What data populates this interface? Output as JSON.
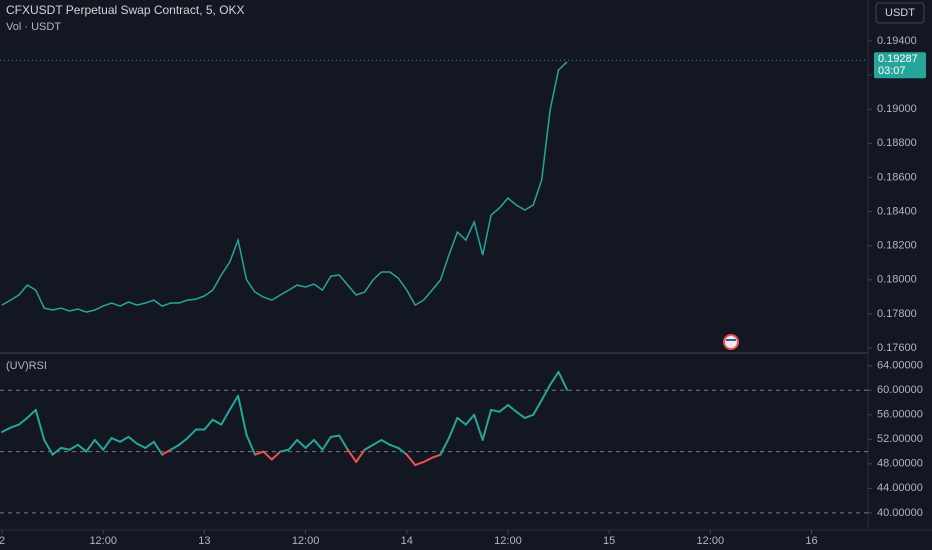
{
  "chart_data": [
    {
      "type": "line",
      "title": "CFXUSDT Perpetual Swap Contract, 5, OKX",
      "subtitle": "Vol · USDT",
      "currency": "USDT",
      "x": [
        0,
        1,
        2,
        3,
        4,
        5,
        6,
        7,
        8,
        9,
        10,
        11,
        12,
        13,
        14,
        15,
        16,
        17,
        18,
        19,
        20,
        21,
        22,
        23,
        24,
        25,
        26,
        27,
        28,
        29,
        30,
        31,
        32,
        33,
        34,
        35,
        36,
        37,
        38,
        39,
        40,
        41,
        42,
        43,
        44,
        45,
        46,
        47,
        48,
        49,
        50,
        51,
        52,
        53,
        54,
        55,
        56,
        57,
        58,
        59,
        60,
        61,
        62,
        63,
        64,
        65,
        66,
        67
      ],
      "values": [
        0.17852,
        0.17881,
        0.17911,
        0.17969,
        0.1794,
        0.17834,
        0.17823,
        0.17834,
        0.17817,
        0.17829,
        0.17811,
        0.17823,
        0.17846,
        0.17864,
        0.17846,
        0.1787,
        0.17852,
        0.17864,
        0.17881,
        0.17846,
        0.17864,
        0.17864,
        0.17881,
        0.17887,
        0.17905,
        0.1794,
        0.18028,
        0.18104,
        0.18233,
        0.17999,
        0.17928,
        0.17899,
        0.17881,
        0.17911,
        0.1794,
        0.17969,
        0.17958,
        0.17975,
        0.1794,
        0.18022,
        0.18028,
        0.17969,
        0.17911,
        0.17928,
        0.17999,
        0.18046,
        0.18046,
        0.1801,
        0.1794,
        0.17852,
        0.17881,
        0.1794,
        0.17999,
        0.18145,
        0.1828,
        0.18233,
        0.18339,
        0.18145,
        0.1838,
        0.18421,
        0.18479,
        0.18438,
        0.18409,
        0.18438,
        0.18585,
        0.18995,
        0.1923,
        0.19277
      ],
      "color": "#26a69a",
      "xlim": [
        -0.24,
        102.7
      ],
      "ylim": [
        0.17577,
        0.1964
      ],
      "yticks": [
        {
          "value": 0.176,
          "label": "0.17600"
        },
        {
          "value": 0.178,
          "label": "0.17800"
        },
        {
          "value": 0.18,
          "label": "0.18000"
        },
        {
          "value": 0.182,
          "label": "0.18200"
        },
        {
          "value": 0.184,
          "label": "0.18400"
        },
        {
          "value": 0.186,
          "label": "0.18600"
        },
        {
          "value": 0.188,
          "label": "0.18800"
        },
        {
          "value": 0.19,
          "label": "0.19000"
        },
        {
          "value": 0.192,
          "label": "0.19200"
        },
        {
          "value": 0.194,
          "label": "0.19400"
        }
      ],
      "last_price": 0.19287,
      "countdown": "03:07"
    },
    {
      "type": "line",
      "title": "(UV)RSI",
      "x": [
        0,
        1,
        2,
        3,
        4,
        5,
        6,
        7,
        8,
        9,
        10,
        11,
        12,
        13,
        14,
        15,
        16,
        17,
        18,
        19,
        20,
        21,
        22,
        23,
        24,
        25,
        26,
        27,
        28,
        29,
        30,
        31,
        32,
        33,
        34,
        35,
        36,
        37,
        38,
        39,
        40,
        41,
        42,
        43,
        44,
        45,
        46,
        47,
        48,
        49,
        50,
        51,
        52,
        53,
        54,
        55,
        56,
        57,
        58,
        59,
        60,
        61,
        62,
        63,
        64,
        65,
        66,
        67
      ],
      "values": [
        53.2,
        53.9,
        54.4,
        55.5,
        56.8,
        51.9,
        49.5,
        50.6,
        50.3,
        51.1,
        50.0,
        51.9,
        50.3,
        52.2,
        51.6,
        52.4,
        51.3,
        50.6,
        51.6,
        49.5,
        50.3,
        51.1,
        52.2,
        53.6,
        53.6,
        55.2,
        54.4,
        56.8,
        59.1,
        52.7,
        49.5,
        50.0,
        48.7,
        50.0,
        50.3,
        51.9,
        50.6,
        51.9,
        50.3,
        52.4,
        52.6,
        50.3,
        48.3,
        50.3,
        51.1,
        51.9,
        51.1,
        50.6,
        49.5,
        47.8,
        48.3,
        49.0,
        49.5,
        52.2,
        55.5,
        54.4,
        56.0,
        51.9,
        56.8,
        56.5,
        57.6,
        56.5,
        55.5,
        56.0,
        58.4,
        60.9,
        63.0,
        60.1
      ],
      "colors": {
        "up": "#26a69a",
        "down": "#ef5350"
      },
      "bands": [
        40,
        50,
        60
      ],
      "xlim": [
        -0.24,
        102.7
      ],
      "ylim": [
        37.2,
        65.6
      ],
      "yticks": [
        {
          "value": 40,
          "label": "40.00000"
        },
        {
          "value": 44,
          "label": "44.00000"
        },
        {
          "value": 48,
          "label": "48.00000"
        },
        {
          "value": 52,
          "label": "52.00000"
        },
        {
          "value": 56,
          "label": "56.00000"
        },
        {
          "value": 60,
          "label": "60.00000"
        },
        {
          "value": 64,
          "label": "64.00000"
        }
      ],
      "xticks": [
        {
          "value": 0,
          "label": "2"
        },
        {
          "value": 12,
          "label": "12:00"
        },
        {
          "value": 24,
          "label": "13"
        },
        {
          "value": 36,
          "label": "12:00"
        },
        {
          "value": 48,
          "label": "14"
        },
        {
          "value": 60,
          "label": "12:00"
        },
        {
          "value": 72,
          "label": "15"
        },
        {
          "value": 84,
          "label": "12:00"
        },
        {
          "value": 96,
          "label": "16"
        }
      ]
    }
  ]
}
